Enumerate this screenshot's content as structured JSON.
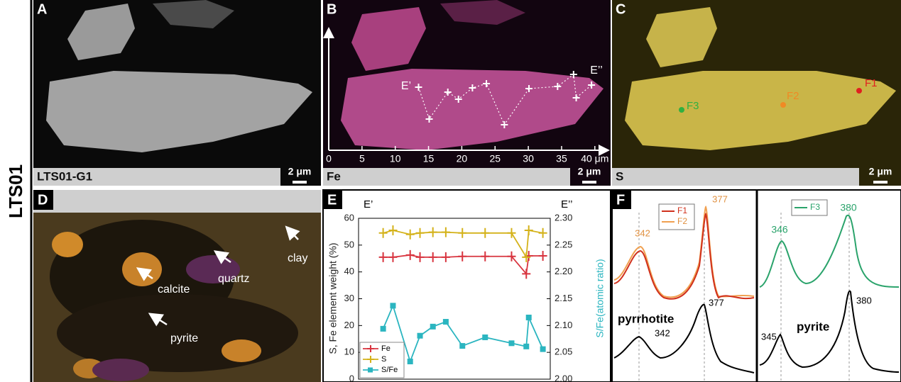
{
  "row_label": "LTS01",
  "panel_a": {
    "letter": "A",
    "caption": "LTS01-G1",
    "scale": "2 μm"
  },
  "panel_b": {
    "letter": "B",
    "caption": "Fe",
    "scale": "2 μm",
    "start": "E’",
    "end": "E’’",
    "ticks": [
      0,
      5,
      10,
      15,
      20,
      25,
      30,
      35,
      {
        "value": 40,
        "label": "40 μm"
      }
    ]
  },
  "panel_c": {
    "letter": "C",
    "caption": "S",
    "scale": "2 μm",
    "points": [
      "F1",
      "F2",
      "F3"
    ]
  },
  "panel_d": {
    "letter": "D",
    "labels": [
      "calcite",
      "quartz",
      "clay",
      "pyrite"
    ]
  },
  "panel_e_letter": "E",
  "chart_data": {
    "type": "line",
    "start_label": "E’",
    "end_label": "E’’",
    "ylabel": "S, Fe element weight (%)",
    "y2label": "S/Fe(atomic ratio)",
    "x": [
      13.5,
      15.1,
      17.9,
      19.5,
      21.6,
      23.7,
      26.4,
      30.1,
      34.4,
      36.8,
      37.2,
      39.5
    ],
    "xlim": [
      9.5,
      40.7
    ],
    "ylim": [
      0,
      60
    ],
    "yticks": [
      0,
      10,
      20,
      30,
      40,
      50,
      60
    ],
    "y2lim": [
      2.0,
      2.3
    ],
    "y2ticks": [
      {
        "value": 2.0,
        "label": "2.00"
      },
      {
        "value": 2.05,
        "label": "2.05"
      },
      {
        "value": 2.1,
        "label": "2.10"
      },
      {
        "value": 2.15,
        "label": "2.15"
      },
      {
        "value": 2.2,
        "label": "2.20"
      },
      {
        "value": 2.25,
        "label": "2.25"
      },
      {
        "value": 2.3,
        "label": "2.30"
      }
    ],
    "legend": "lower left",
    "series": [
      {
        "name": "Fe",
        "color": "#d8343f",
        "marker": "plus",
        "values": [
          45.5,
          45.5,
          46.3,
          45.5,
          45.5,
          45.5,
          45.8,
          45.8,
          45.8,
          39.3,
          46,
          46
        ]
      },
      {
        "name": "S",
        "color": "#d4b21a",
        "marker": "plus",
        "values": [
          54.5,
          55.5,
          54,
          54.5,
          54.8,
          54.8,
          54.5,
          54.5,
          54.5,
          45.5,
          55.5,
          54.5
        ]
      },
      {
        "name": "S/Fe",
        "color": "#2bb5c0",
        "marker": "square",
        "axis": "y2",
        "values": [
          2.094,
          2.137,
          2.033,
          2.081,
          2.098,
          2.107,
          2.062,
          2.078,
          2.067,
          2.061,
          2.115,
          2.056
        ]
      }
    ]
  },
  "panel_f": {
    "letter": "F",
    "left": {
      "legend": [
        "F1",
        "F2"
      ],
      "upper_peaks": [
        342,
        377
      ],
      "mineral": "pyrrhotite",
      "lower_peaks": [
        342,
        377
      ]
    },
    "right": {
      "legend": [
        "F3"
      ],
      "upper_peaks": [
        346,
        380
      ],
      "mineral": "pyrite",
      "lower_peaks": [
        345,
        380
      ]
    }
  }
}
